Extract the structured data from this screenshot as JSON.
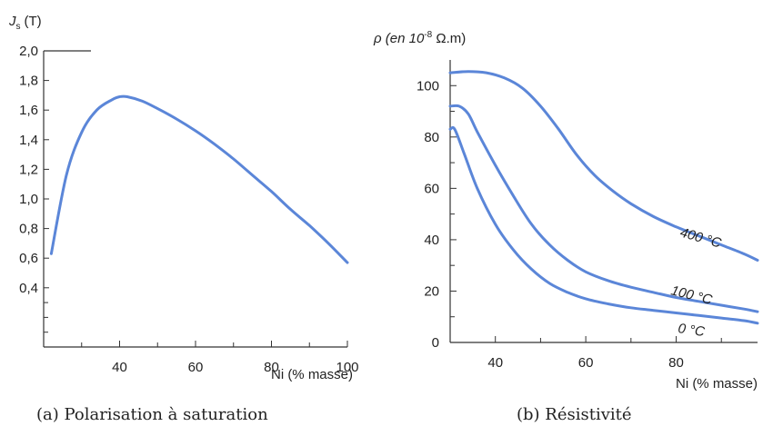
{
  "chart_data": [
    {
      "type": "line",
      "ylabel_symbol": "J",
      "ylabel_sub": "s",
      "ylabel_unit": "(T)",
      "xlabel": "Ni (% masse)",
      "xlim": [
        20,
        100
      ],
      "ylim": [
        0.0,
        2.0
      ],
      "x_ticks": [
        40,
        60,
        80,
        100
      ],
      "x_tick_labels": [
        "40",
        "60",
        "80",
        "100"
      ],
      "y_ticks": [
        0.4,
        0.6,
        0.8,
        1.0,
        1.2,
        1.4,
        1.6,
        1.8,
        2.0
      ],
      "y_tick_labels": [
        "0,4",
        "0,6",
        "0,8",
        "1,0",
        "1,2",
        "1,4",
        "1,6",
        "1,8",
        "2,0"
      ],
      "caption": "(a) Polarisation à saturation",
      "series": [
        {
          "color": "#5b86d8",
          "x": [
            22,
            26,
            30,
            34,
            38,
            40,
            42,
            46,
            50,
            55,
            60,
            65,
            70,
            75,
            80,
            85,
            90,
            95,
            100
          ],
          "y": [
            0.63,
            1.16,
            1.45,
            1.6,
            1.67,
            1.69,
            1.69,
            1.66,
            1.61,
            1.54,
            1.46,
            1.37,
            1.27,
            1.16,
            1.05,
            0.93,
            0.82,
            0.7,
            0.57
          ]
        }
      ]
    },
    {
      "type": "line",
      "ylabel": "ρ (en 10",
      "ylabel_exp": "-8",
      "ylabel_unit": " Ω.m)",
      "xlabel": "Ni (% masse)",
      "xlim": [
        30,
        98
      ],
      "ylim": [
        0,
        110
      ],
      "x_ticks": [
        40,
        60,
        80
      ],
      "x_tick_labels": [
        "40",
        "60",
        "80"
      ],
      "y_ticks": [
        0,
        20,
        40,
        60,
        80,
        100
      ],
      "y_tick_labels": [
        "0",
        "20",
        "40",
        "60",
        "80",
        "100"
      ],
      "caption": "(b) Résistivité",
      "series": [
        {
          "name": "400 °C",
          "color": "#5b86d8",
          "x": [
            30,
            34,
            38,
            42,
            46,
            50,
            54,
            58,
            62,
            66,
            70,
            75,
            80,
            85,
            90,
            95,
            98
          ],
          "y": [
            105,
            105.5,
            105,
            103,
            99,
            92,
            83,
            73,
            65,
            59,
            54,
            49,
            45,
            41.5,
            38,
            34.5,
            32
          ]
        },
        {
          "name": "100 °C",
          "color": "#5b86d8",
          "x": [
            30,
            32,
            34,
            36,
            40,
            44,
            48,
            52,
            56,
            60,
            65,
            70,
            75,
            80,
            85,
            90,
            95,
            98
          ],
          "y": [
            92,
            92,
            89,
            82,
            69,
            57,
            46,
            38,
            32,
            27.5,
            24,
            21.5,
            19.5,
            17.5,
            16,
            14.5,
            13,
            12
          ]
        },
        {
          "name": "0 °C",
          "color": "#5b86d8",
          "x": [
            30,
            31,
            33,
            36,
            40,
            44,
            48,
            52,
            56,
            60,
            65,
            70,
            75,
            80,
            85,
            90,
            95,
            98
          ],
          "y": [
            83,
            83,
            74,
            60,
            46,
            36,
            28.5,
            23,
            19.5,
            17,
            15,
            13.5,
            12.5,
            11.5,
            10.5,
            9.5,
            8.5,
            7.5
          ]
        }
      ]
    }
  ]
}
